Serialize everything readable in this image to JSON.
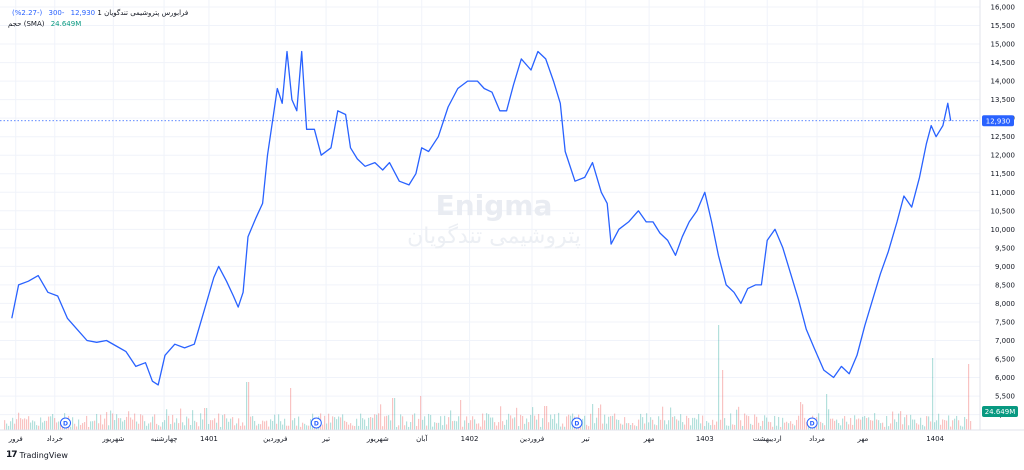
{
  "legend": {
    "symbol_title": "پتروشیمی تندگویان",
    "interval": "1",
    "source": "فرابورس",
    "last_price": "12,930",
    "change": "-300",
    "change_pct": "(-2.27%)",
    "volume_label": "حجم (SMA)",
    "volume_value": "24.649M"
  },
  "watermark": {
    "main": "Enigma",
    "sub": "پتروشیمی تندگویان"
  },
  "brand": {
    "logo": "17",
    "name": "TradingView"
  },
  "price_tag": {
    "label": "12,930",
    "value": 12930
  },
  "volume_tag": {
    "label": "24.649M"
  },
  "colors": {
    "line": "#2962ff",
    "vol_up": "#26a69a",
    "vol_down": "#ef5350",
    "grid": "#f0f3fa",
    "text": "#131722"
  },
  "chart_data": {
    "type": "line",
    "title": "",
    "xlabel": "",
    "ylabel": "",
    "ylim": [
      4800,
      16000
    ],
    "grid": true,
    "y_ticks": [
      {
        "value": 16000,
        "label": "16,000"
      },
      {
        "value": 15500,
        "label": "15,500"
      },
      {
        "value": 15000,
        "label": "15,000"
      },
      {
        "value": 14500,
        "label": "14,500"
      },
      {
        "value": 14000,
        "label": "14,000"
      },
      {
        "value": 13500,
        "label": "13,500"
      },
      {
        "value": 13000,
        "label": "13,000"
      },
      {
        "value": 12500,
        "label": "12,500"
      },
      {
        "value": 12000,
        "label": "12,000"
      },
      {
        "value": 11500,
        "label": "11,500"
      },
      {
        "value": 11000,
        "label": "11,000"
      },
      {
        "value": 10500,
        "label": "10,500"
      },
      {
        "value": 10000,
        "label": "10,000"
      },
      {
        "value": 9500,
        "label": "9,500"
      },
      {
        "value": 9000,
        "label": "9,000"
      },
      {
        "value": 8500,
        "label": "8,500"
      },
      {
        "value": 8000,
        "label": "8,000"
      },
      {
        "value": 7500,
        "label": "7,500"
      },
      {
        "value": 7000,
        "label": "7,000"
      },
      {
        "value": 6500,
        "label": "6,500"
      },
      {
        "value": 6000,
        "label": "6,000"
      },
      {
        "value": 5500,
        "label": "5,500"
      },
      {
        "value": 5000,
        "label": "5,000"
      }
    ],
    "x_range": [
      0,
      1000
    ],
    "x_ticks": [
      {
        "x": 12,
        "label": "فرور"
      },
      {
        "x": 52,
        "label": "خرداد"
      },
      {
        "x": 112,
        "label": "شهریور"
      },
      {
        "x": 164,
        "label": "چهارشنبه"
      },
      {
        "x": 210,
        "label": "1401"
      },
      {
        "x": 278,
        "label": "فروردین"
      },
      {
        "x": 330,
        "label": "تیر"
      },
      {
        "x": 383,
        "label": "شهریور"
      },
      {
        "x": 428,
        "label": "آبان"
      },
      {
        "x": 477,
        "label": "1402"
      },
      {
        "x": 541,
        "label": "فروردین"
      },
      {
        "x": 596,
        "label": "تیر"
      },
      {
        "x": 661,
        "label": "مهر"
      },
      {
        "x": 718,
        "label": "1403"
      },
      {
        "x": 782,
        "label": "اردیبهشت"
      },
      {
        "x": 833,
        "label": "مرداد"
      },
      {
        "x": 880,
        "label": "مهر"
      },
      {
        "x": 954,
        "label": "1404"
      }
    ],
    "dividend_markers": [
      {
        "x": 63,
        "label": "D"
      },
      {
        "x": 320,
        "label": "D"
      },
      {
        "x": 587,
        "label": "D"
      },
      {
        "x": 828,
        "label": "D"
      }
    ],
    "series": [
      {
        "values": [
          [
            8,
            7600
          ],
          [
            15,
            8500
          ],
          [
            25,
            8600
          ],
          [
            35,
            8750
          ],
          [
            45,
            8300
          ],
          [
            55,
            8200
          ],
          [
            65,
            7600
          ],
          [
            75,
            7300
          ],
          [
            85,
            7000
          ],
          [
            95,
            6950
          ],
          [
            105,
            7000
          ],
          [
            115,
            6850
          ],
          [
            125,
            6700
          ],
          [
            135,
            6300
          ],
          [
            145,
            6400
          ],
          [
            152,
            5900
          ],
          [
            158,
            5800
          ],
          [
            165,
            6600
          ],
          [
            175,
            6900
          ],
          [
            185,
            6800
          ],
          [
            195,
            6900
          ],
          [
            205,
            7800
          ],
          [
            215,
            8700
          ],
          [
            220,
            9000
          ],
          [
            228,
            8600
          ],
          [
            235,
            8200
          ],
          [
            240,
            7900
          ],
          [
            245,
            8300
          ],
          [
            250,
            9800
          ],
          [
            258,
            10300
          ],
          [
            265,
            10700
          ],
          [
            270,
            12000
          ],
          [
            275,
            12900
          ],
          [
            280,
            13800
          ],
          [
            285,
            13400
          ],
          [
            290,
            14800
          ],
          [
            295,
            13500
          ],
          [
            300,
            13200
          ],
          [
            305,
            14800
          ],
          [
            310,
            12700
          ],
          [
            318,
            12700
          ],
          [
            325,
            12000
          ],
          [
            335,
            12200
          ],
          [
            342,
            13200
          ],
          [
            350,
            13100
          ],
          [
            355,
            12200
          ],
          [
            362,
            11900
          ],
          [
            370,
            11700
          ],
          [
            380,
            11800
          ],
          [
            388,
            11600
          ],
          [
            395,
            11800
          ],
          [
            405,
            11300
          ],
          [
            415,
            11200
          ],
          [
            422,
            11500
          ],
          [
            428,
            12200
          ],
          [
            435,
            12100
          ],
          [
            445,
            12500
          ],
          [
            455,
            13300
          ],
          [
            465,
            13800
          ],
          [
            475,
            14000
          ],
          [
            485,
            14000
          ],
          [
            492,
            13800
          ],
          [
            500,
            13700
          ],
          [
            508,
            13200
          ],
          [
            515,
            13200
          ],
          [
            522,
            13900
          ],
          [
            530,
            14600
          ],
          [
            540,
            14300
          ],
          [
            547,
            14800
          ],
          [
            555,
            14600
          ],
          [
            563,
            14000
          ],
          [
            570,
            13400
          ],
          [
            575,
            12100
          ],
          [
            585,
            11300
          ],
          [
            595,
            11400
          ],
          [
            603,
            11800
          ],
          [
            612,
            11000
          ],
          [
            618,
            10700
          ],
          [
            622,
            9600
          ],
          [
            630,
            10000
          ],
          [
            640,
            10200
          ],
          [
            650,
            10500
          ],
          [
            658,
            10200
          ],
          [
            665,
            10200
          ],
          [
            672,
            9900
          ],
          [
            680,
            9700
          ],
          [
            688,
            9300
          ],
          [
            695,
            9800
          ],
          [
            702,
            10200
          ],
          [
            710,
            10500
          ],
          [
            718,
            11000
          ],
          [
            725,
            10200
          ],
          [
            732,
            9300
          ],
          [
            740,
            8500
          ],
          [
            748,
            8300
          ],
          [
            755,
            8000
          ],
          [
            762,
            8400
          ],
          [
            770,
            8500
          ],
          [
            776,
            8500
          ],
          [
            782,
            9700
          ],
          [
            790,
            10000
          ],
          [
            798,
            9500
          ],
          [
            806,
            8800
          ],
          [
            814,
            8100
          ],
          [
            822,
            7300
          ],
          [
            830,
            6800
          ],
          [
            840,
            6200
          ],
          [
            850,
            6000
          ],
          [
            858,
            6300
          ],
          [
            866,
            6100
          ],
          [
            874,
            6600
          ],
          [
            882,
            7400
          ],
          [
            890,
            8100
          ],
          [
            898,
            8800
          ],
          [
            906,
            9400
          ],
          [
            915,
            10200
          ],
          [
            922,
            10900
          ],
          [
            930,
            10600
          ],
          [
            938,
            11400
          ],
          [
            945,
            12300
          ],
          [
            950,
            12800
          ],
          [
            955,
            12500
          ],
          [
            962,
            12800
          ],
          [
            967,
            13400
          ],
          [
            970,
            12930
          ]
        ]
      }
    ],
    "last_value": 12930
  }
}
